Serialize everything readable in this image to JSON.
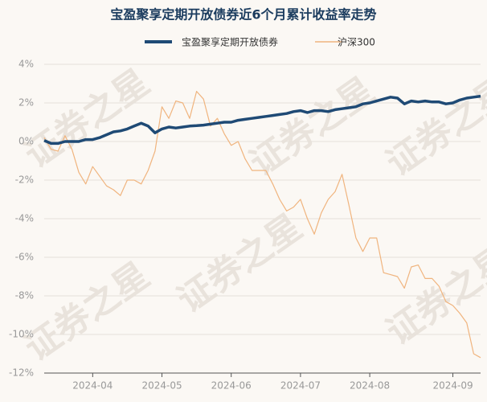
{
  "chart_data": {
    "type": "line",
    "title": "宝盈聚享定期开放债券近6个月累计收益率走势",
    "watermark": "证券之星",
    "categories": [
      null,
      null,
      null,
      null,
      null,
      null,
      null,
      "2024-04",
      null,
      null,
      null,
      null,
      null,
      null,
      null,
      null,
      null,
      "2024-05",
      null,
      null,
      null,
      null,
      null,
      null,
      null,
      null,
      null,
      "2024-06",
      null,
      null,
      null,
      null,
      null,
      null,
      null,
      null,
      null,
      "2024-07",
      null,
      null,
      null,
      null,
      null,
      null,
      null,
      null,
      null,
      "2024-08",
      null,
      null,
      null,
      null,
      null,
      null,
      null,
      null,
      null,
      null,
      null,
      "2024-09",
      null,
      null,
      null,
      null
    ],
    "series": [
      {
        "name": "宝盈聚享定期开放债券",
        "color": "#1f4a75",
        "values": [
          0.05,
          -0.1,
          -0.1,
          0,
          0,
          0,
          0.1,
          0.1,
          0.2,
          0.35,
          0.5,
          0.55,
          0.65,
          0.8,
          0.95,
          0.8,
          0.45,
          0.65,
          0.75,
          0.7,
          0.75,
          0.8,
          0.82,
          0.85,
          0.9,
          0.95,
          1.0,
          1.0,
          1.1,
          1.15,
          1.2,
          1.25,
          1.3,
          1.35,
          1.4,
          1.45,
          1.55,
          1.6,
          1.5,
          1.6,
          1.6,
          1.55,
          1.65,
          1.7,
          1.75,
          1.8,
          1.95,
          2.0,
          2.1,
          2.2,
          2.3,
          2.25,
          1.95,
          2.1,
          2.05,
          2.1,
          2.05,
          2.05,
          1.95,
          2.0,
          2.15,
          2.25,
          2.3,
          2.35
        ]
      },
      {
        "name": "沪深300",
        "color": "#f0b47e",
        "values": [
          0.2,
          -0.4,
          -0.5,
          0.3,
          -0.4,
          -1.6,
          -2.2,
          -1.3,
          -1.8,
          -2.3,
          -2.5,
          -2.8,
          -2.0,
          -2.0,
          -2.2,
          -1.5,
          -0.5,
          1.8,
          1.2,
          2.1,
          2.0,
          1.2,
          2.6,
          2.2,
          0.8,
          1.2,
          0.4,
          -0.2,
          0.0,
          -0.9,
          -1.5,
          -1.5,
          -1.5,
          -2.2,
          -3.0,
          -3.6,
          -3.4,
          -3.0,
          -4.0,
          -4.8,
          -3.7,
          -3.0,
          -2.6,
          -1.7,
          -3.3,
          -5.0,
          -5.7,
          -5.0,
          -5.0,
          -6.8,
          -6.9,
          -7.0,
          -7.6,
          -6.5,
          -6.4,
          -7.1,
          -7.1,
          -7.5,
          -8.3,
          -8.5,
          -8.9,
          -9.4,
          -11.0,
          -11.2
        ]
      }
    ],
    "ylim": [
      -12,
      4
    ],
    "yticks": [
      {
        "value": -12,
        "label": "-12%"
      },
      {
        "value": -10,
        "label": "-10%"
      },
      {
        "value": -8,
        "label": "-8%"
      },
      {
        "value": -6,
        "label": "-6%"
      },
      {
        "value": -4,
        "label": "-4%"
      },
      {
        "value": -2,
        "label": "-2%"
      },
      {
        "value": 0,
        "label": "0%"
      },
      {
        "value": 2,
        "label": "2%"
      },
      {
        "value": 4,
        "label": "4%"
      }
    ],
    "grid": true
  }
}
